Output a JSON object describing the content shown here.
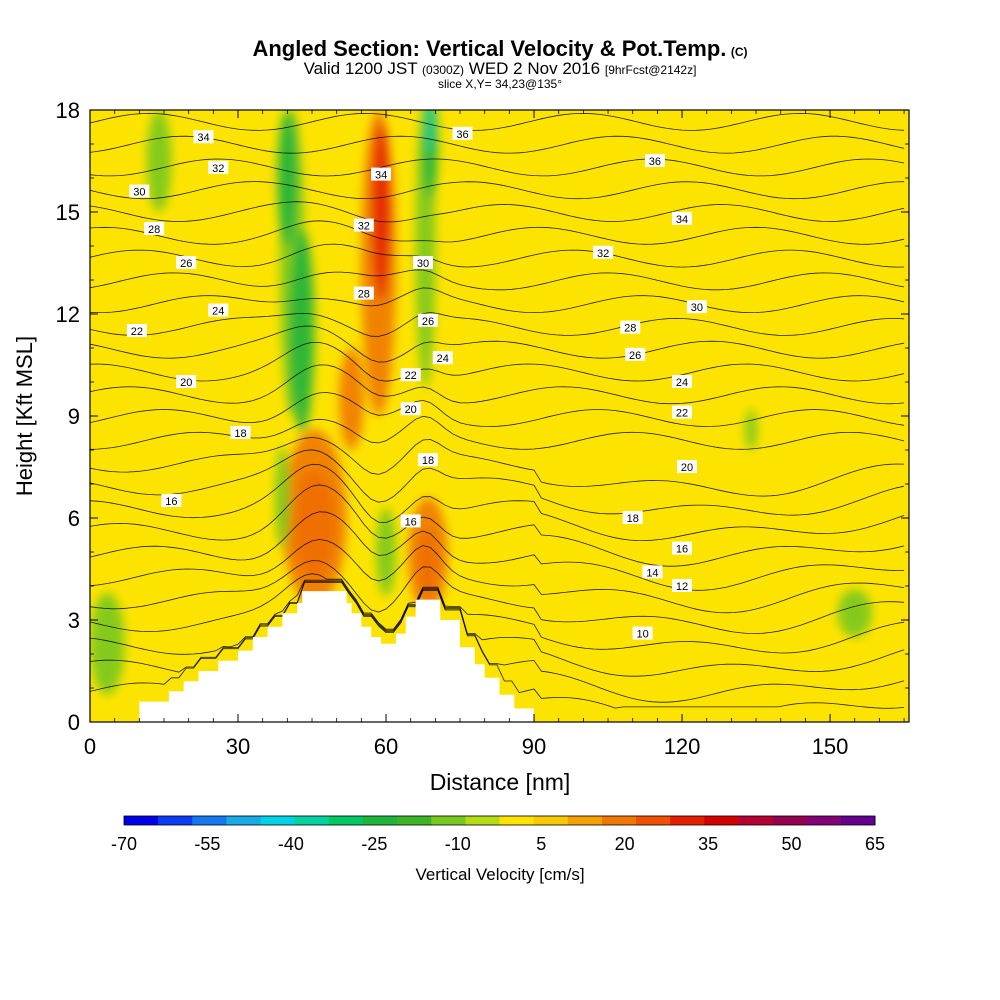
{
  "header": {
    "title_main": "Angled Section: Vertical Velocity & Pot.Temp.",
    "title_mark": "(C)",
    "valid_prefix": "Valid 1200 JST",
    "valid_utc": "(0300Z)",
    "valid_date": "WED 2 Nov 2016",
    "forecast": "[9hrFcst@2142z]",
    "slice": "slice X,Y= 34,23@135°"
  },
  "colors": {
    "background_field": "#fde400",
    "terrain": "#ffffff",
    "contour": "#000000"
  },
  "chart_data": {
    "type": "contour",
    "title": "Angled Section: Vertical Velocity & Pot.Temp.",
    "xlabel": "Distance [nm]",
    "ylabel": "Height [Kft MSL]",
    "xlim": [
      0,
      166
    ],
    "ylim": [
      0,
      18
    ],
    "xticks": [
      0,
      30,
      60,
      90,
      120,
      150
    ],
    "yticks": [
      0,
      3,
      6,
      9,
      12,
      15,
      18
    ],
    "colorbar": {
      "label": "Vertical Velocity [cm/s]",
      "tick_labels": [
        "-70",
        "-55",
        "-40",
        "-25",
        "-10",
        "5",
        "20",
        "35",
        "50",
        "65"
      ],
      "colors": [
        "#0000e6",
        "#0c3cf5",
        "#1478ee",
        "#1aaae6",
        "#00d2e6",
        "#00d2a0",
        "#00c864",
        "#1eb43c",
        "#3cb428",
        "#78c81e",
        "#b4dc14",
        "#fde400",
        "#f8c800",
        "#f5a000",
        "#f07800",
        "#f05000",
        "#e61e00",
        "#d20000",
        "#b40032",
        "#960050",
        "#820078",
        "#64008c"
      ]
    },
    "terrain_profile": [
      [
        0,
        0
      ],
      [
        10,
        0
      ],
      [
        10,
        0.6
      ],
      [
        16,
        0.6
      ],
      [
        16,
        0.9
      ],
      [
        19,
        0.9
      ],
      [
        19,
        1.2
      ],
      [
        22,
        1.2
      ],
      [
        22,
        1.5
      ],
      [
        26,
        1.5
      ],
      [
        26,
        1.8
      ],
      [
        30,
        1.8
      ],
      [
        30,
        2.1
      ],
      [
        33,
        2.1
      ],
      [
        33,
        2.5
      ],
      [
        36,
        2.5
      ],
      [
        36,
        2.8
      ],
      [
        39,
        2.8
      ],
      [
        39,
        3.2
      ],
      [
        42,
        3.2
      ],
      [
        42,
        3.5
      ],
      [
        43,
        3.5
      ],
      [
        43,
        3.85
      ],
      [
        52,
        3.85
      ],
      [
        52,
        3.5
      ],
      [
        53,
        3.5
      ],
      [
        53,
        3.2
      ],
      [
        55,
        3.2
      ],
      [
        55,
        2.8
      ],
      [
        57,
        2.8
      ],
      [
        57,
        2.5
      ],
      [
        59,
        2.5
      ],
      [
        59,
        2.3
      ],
      [
        62,
        2.3
      ],
      [
        62,
        2.6
      ],
      [
        64,
        2.6
      ],
      [
        64,
        3.1
      ],
      [
        66,
        3.1
      ],
      [
        66,
        3.6
      ],
      [
        71,
        3.6
      ],
      [
        71,
        3.0
      ],
      [
        75,
        3.0
      ],
      [
        75,
        2.2
      ],
      [
        78,
        2.2
      ],
      [
        78,
        1.7
      ],
      [
        80,
        1.7
      ],
      [
        80,
        1.3
      ],
      [
        83,
        1.3
      ],
      [
        83,
        0.8
      ],
      [
        86,
        0.8
      ],
      [
        86,
        0.4
      ],
      [
        90,
        0.4
      ],
      [
        90,
        0
      ],
      [
        166,
        0
      ]
    ],
    "theta_contour_labels": [
      {
        "x": 23,
        "y": 17.2,
        "text": "34"
      },
      {
        "x": 26,
        "y": 16.3,
        "text": "32"
      },
      {
        "x": 10,
        "y": 15.6,
        "text": "30"
      },
      {
        "x": 13,
        "y": 14.5,
        "text": "28"
      },
      {
        "x": 19.5,
        "y": 13.5,
        "text": "26"
      },
      {
        "x": 26,
        "y": 12.1,
        "text": "24"
      },
      {
        "x": 9.5,
        "y": 11.5,
        "text": "22"
      },
      {
        "x": 19.5,
        "y": 10,
        "text": "20"
      },
      {
        "x": 30.5,
        "y": 8.5,
        "text": "18"
      },
      {
        "x": 16.5,
        "y": 6.5,
        "text": "16"
      },
      {
        "x": 75.5,
        "y": 17.3,
        "text": "36"
      },
      {
        "x": 59,
        "y": 16.1,
        "text": "34"
      },
      {
        "x": 55.5,
        "y": 14.6,
        "text": "32"
      },
      {
        "x": 67.5,
        "y": 13.5,
        "text": "30"
      },
      {
        "x": 55.5,
        "y": 12.6,
        "text": "28"
      },
      {
        "x": 68.5,
        "y": 11.8,
        "text": "26"
      },
      {
        "x": 71.5,
        "y": 10.7,
        "text": "24"
      },
      {
        "x": 65,
        "y": 10.2,
        "text": "22"
      },
      {
        "x": 65,
        "y": 9.2,
        "text": "20"
      },
      {
        "x": 68.5,
        "y": 7.7,
        "text": "18"
      },
      {
        "x": 65,
        "y": 5.9,
        "text": "16"
      },
      {
        "x": 114.5,
        "y": 16.5,
        "text": "36"
      },
      {
        "x": 120,
        "y": 14.8,
        "text": "34"
      },
      {
        "x": 104,
        "y": 13.8,
        "text": "32"
      },
      {
        "x": 123,
        "y": 12.2,
        "text": "30"
      },
      {
        "x": 109.5,
        "y": 11.6,
        "text": "28"
      },
      {
        "x": 110.5,
        "y": 10.8,
        "text": "26"
      },
      {
        "x": 120,
        "y": 10.0,
        "text": "24"
      },
      {
        "x": 120,
        "y": 9.1,
        "text": "22"
      },
      {
        "x": 121,
        "y": 7.5,
        "text": "20"
      },
      {
        "x": 110,
        "y": 6.0,
        "text": "18"
      },
      {
        "x": 120,
        "y": 5.1,
        "text": "16"
      },
      {
        "x": 114,
        "y": 4.4,
        "text": "14"
      },
      {
        "x": 120,
        "y": 4.0,
        "text": "12"
      },
      {
        "x": 112,
        "y": 2.6,
        "text": "10"
      }
    ],
    "velocity_features": [
      {
        "kind": "ellipse",
        "cx": 45.5,
        "cy": 5.8,
        "rx": 4,
        "ry": 1.6,
        "value": 35
      },
      {
        "kind": "ellipse",
        "cx": 45.5,
        "cy": 6.0,
        "rx": 6.5,
        "ry": 2.6,
        "value": 20
      },
      {
        "kind": "ellipse",
        "cx": 68.5,
        "cy": 4.7,
        "rx": 2,
        "ry": 1.0,
        "value": 35
      },
      {
        "kind": "ellipse",
        "cx": 68.5,
        "cy": 4.9,
        "rx": 4,
        "ry": 1.7,
        "value": 20
      },
      {
        "kind": "ellipse",
        "cx": 58.5,
        "cy": 13.5,
        "rx": 3.5,
        "ry": 4.5,
        "value": 20
      },
      {
        "kind": "ellipse",
        "cx": 59,
        "cy": 15.0,
        "rx": 1.8,
        "ry": 2.6,
        "value": 35
      },
      {
        "kind": "ellipse",
        "cx": 53,
        "cy": 9.5,
        "rx": 2.5,
        "ry": 1.5,
        "value": 20
      },
      {
        "kind": "ellipse",
        "cx": 41,
        "cy": 13.5,
        "rx": 2.5,
        "ry": 4.5,
        "value": -10
      },
      {
        "kind": "ellipse",
        "cx": 43,
        "cy": 11.5,
        "rx": 2.5,
        "ry": 3,
        "value": -25
      },
      {
        "kind": "ellipse",
        "cx": 40,
        "cy": 16,
        "rx": 2,
        "ry": 2,
        "value": -25
      },
      {
        "kind": "ellipse",
        "cx": 68,
        "cy": 14,
        "rx": 2,
        "ry": 4.2,
        "value": -10
      },
      {
        "kind": "ellipse",
        "cx": 69,
        "cy": 17,
        "rx": 1.5,
        "ry": 1.6,
        "value": -25
      },
      {
        "kind": "ellipse",
        "cx": 69,
        "cy": 17.5,
        "rx": 0.8,
        "ry": 0.8,
        "value": -40
      },
      {
        "kind": "ellipse",
        "cx": 3.5,
        "cy": 2.3,
        "rx": 3.5,
        "ry": 1.5,
        "value": -10
      },
      {
        "kind": "ellipse",
        "cx": 155,
        "cy": 3.2,
        "rx": 3.5,
        "ry": 0.7,
        "value": -10
      },
      {
        "kind": "ellipse",
        "cx": 134,
        "cy": 8.6,
        "rx": 1.2,
        "ry": 0.6,
        "value": -10
      },
      {
        "kind": "ellipse",
        "cx": 14,
        "cy": 16.5,
        "rx": 2.5,
        "ry": 1.5,
        "value": -10
      },
      {
        "kind": "ellipse",
        "cx": 39,
        "cy": 6.6,
        "rx": 1.5,
        "ry": 1.5,
        "value": -10
      },
      {
        "kind": "ellipse",
        "cx": 60,
        "cy": 5.0,
        "rx": 2,
        "ry": 1.3,
        "value": -10
      }
    ]
  }
}
